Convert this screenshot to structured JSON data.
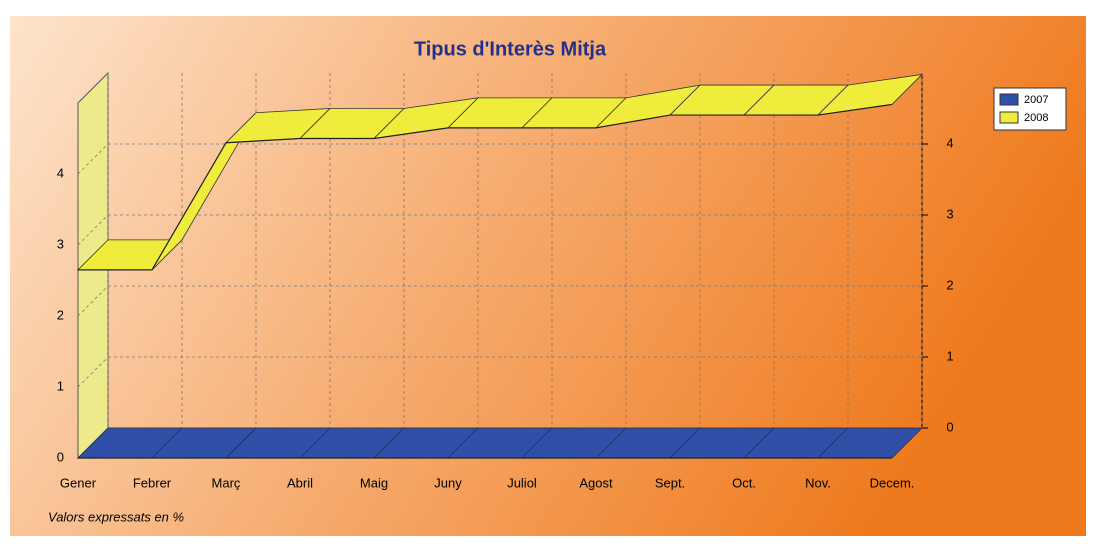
{
  "chart_data": {
    "type": "line",
    "title": "Tipus d'Interès Mitja",
    "note": "Valors expressats en %",
    "categories": [
      "Gener",
      "Febrer",
      "Març",
      "Abril",
      "Maig",
      "Juny",
      "Juliol",
      "Agost",
      "Sept.",
      "Oct.",
      "Nov.",
      "Decem."
    ],
    "series": [
      {
        "name": "2007",
        "color": "#2f4fa8",
        "values": [
          0,
          0,
          0,
          0,
          0,
          0,
          0,
          0,
          0,
          0,
          0,
          0
        ]
      },
      {
        "name": "2008",
        "color": "#f0ec3c",
        "values": [
          2.65,
          2.65,
          4.44,
          4.5,
          4.5,
          4.65,
          4.65,
          4.65,
          4.83,
          4.83,
          4.83,
          4.98
        ]
      }
    ],
    "ylim": [
      0,
      5
    ],
    "yticks": [
      0,
      1,
      2,
      3,
      4
    ],
    "grid": true,
    "legend": "right"
  }
}
